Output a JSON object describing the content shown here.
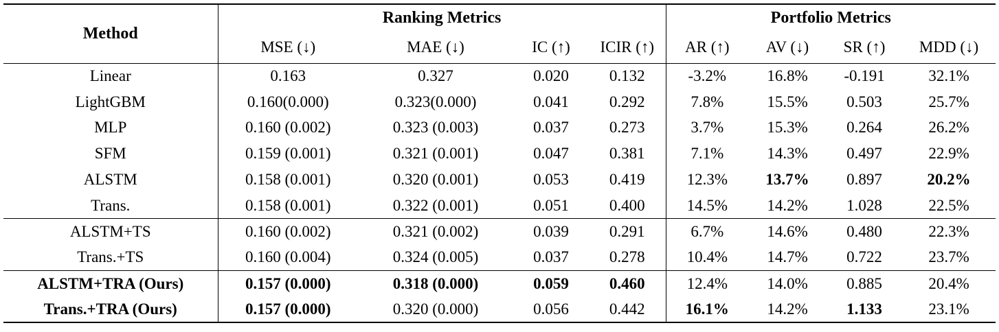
{
  "header": {
    "method": "Method",
    "group_ranking": "Ranking Metrics",
    "group_portfolio": "Portfolio Metrics",
    "columns": [
      "MSE (↓)",
      "MAE (↓)",
      "IC (↑)",
      "ICIR (↑)",
      "AR (↑)",
      "AV (↓)",
      "SR (↑)",
      "MDD (↓)"
    ]
  },
  "rows": [
    {
      "method": "Linear",
      "cells": [
        "0.163",
        "0.327",
        "0.020",
        "0.132",
        "-3.2%",
        "16.8%",
        "-0.191",
        "32.1%"
      ]
    },
    {
      "method": "LightGBM",
      "cells": [
        "0.160(0.000)",
        "0.323(0.000)",
        "0.041",
        "0.292",
        "7.8%",
        "15.5%",
        "0.503",
        "25.7%"
      ]
    },
    {
      "method": "MLP",
      "cells": [
        "0.160 (0.002)",
        "0.323 (0.003)",
        "0.037",
        "0.273",
        "3.7%",
        "15.3%",
        "0.264",
        "26.2%"
      ]
    },
    {
      "method": "SFM",
      "cells": [
        "0.159 (0.001)",
        "0.321 (0.001)",
        "0.047",
        "0.381",
        "7.1%",
        "14.3%",
        "0.497",
        "22.9%"
      ]
    },
    {
      "method": "ALSTM",
      "cells": [
        "0.158 (0.001)",
        "0.320 (0.001)",
        "0.053",
        "0.419",
        "12.3%",
        "13.7%",
        "0.897",
        "20.2%"
      ]
    },
    {
      "method": "Trans.",
      "cells": [
        "0.158 (0.001)",
        "0.322 (0.001)",
        "0.051",
        "0.400",
        "14.5%",
        "14.2%",
        "1.028",
        "22.5%"
      ]
    },
    {
      "method": "ALSTM+TS",
      "cells": [
        "0.160 (0.002)",
        "0.321 (0.002)",
        "0.039",
        "0.291",
        "6.7%",
        "14.6%",
        "0.480",
        "22.3%"
      ]
    },
    {
      "method": "Trans.+TS",
      "cells": [
        "0.160 (0.004)",
        "0.324 (0.005)",
        "0.037",
        "0.278",
        "10.4%",
        "14.7%",
        "0.722",
        "23.7%"
      ]
    },
    {
      "method": "ALSTM+TRA (Ours)",
      "cells": [
        "0.157 (0.000)",
        "0.318 (0.000)",
        "0.059",
        "0.460",
        "12.4%",
        "14.0%",
        "0.885",
        "20.4%"
      ]
    },
    {
      "method": "Trans.+TRA (Ours)",
      "cells": [
        "0.157 (0.000)",
        "0.320 (0.000)",
        "0.056",
        "0.442",
        "16.1%",
        "14.2%",
        "1.133",
        "23.1%"
      ]
    }
  ]
}
